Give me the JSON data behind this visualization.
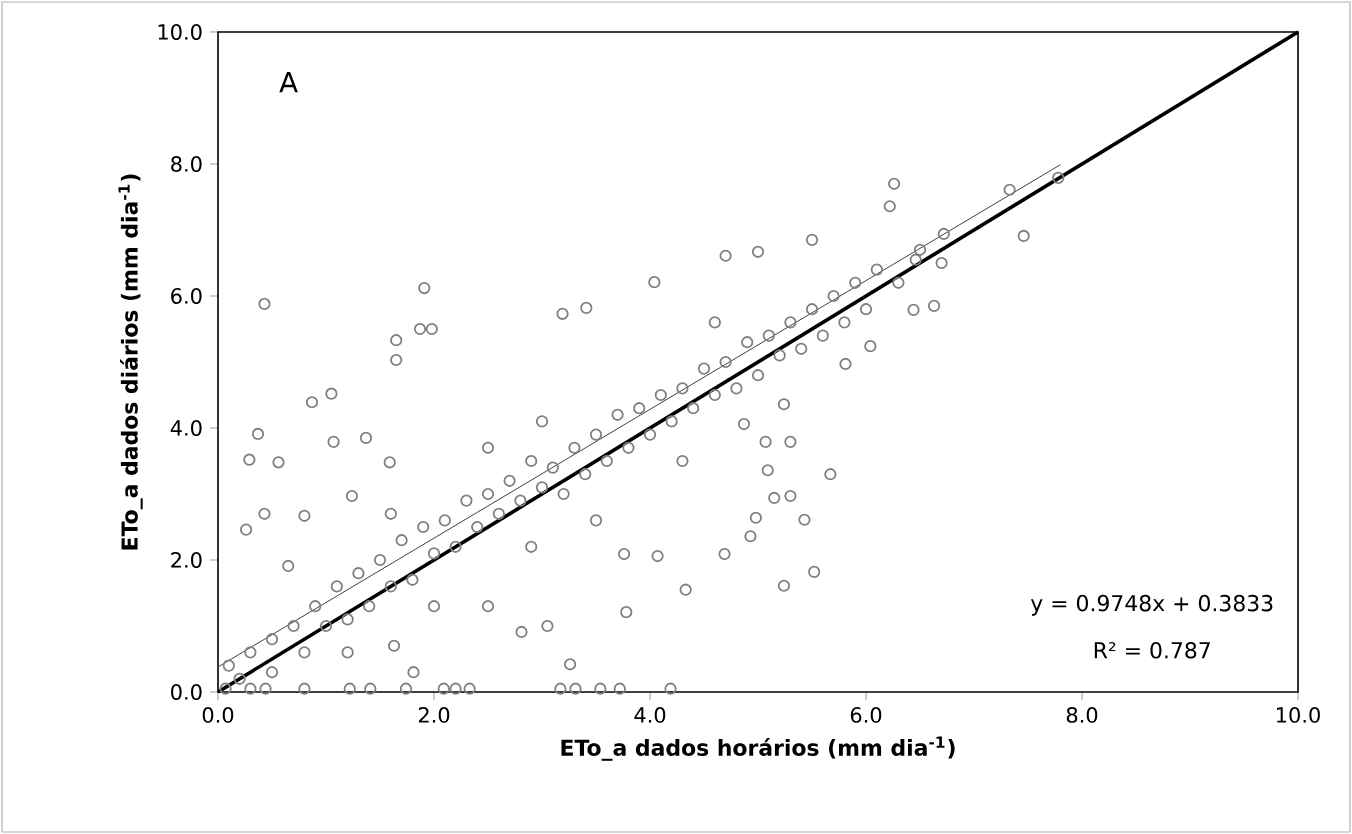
{
  "chart_data": {
    "type": "scatter",
    "xlabel": "ETo_a dados horários (mm dia$^{-1}$)",
    "ylabel": "ETo_a dados diários (mm dia$^{-1}$)",
    "xlim": [
      0,
      10
    ],
    "ylim": [
      0,
      10
    ],
    "xticks": [
      {
        "value": 0,
        "label": "0.0"
      },
      {
        "value": 2,
        "label": "2.0"
      },
      {
        "value": 4,
        "label": "4.0"
      },
      {
        "value": 6,
        "label": "6.0"
      },
      {
        "value": 8,
        "label": "8.0"
      },
      {
        "value": 10,
        "label": "10.0"
      }
    ],
    "yticks": [
      {
        "value": 0,
        "label": "0.0"
      },
      {
        "value": 2,
        "label": "2.0"
      },
      {
        "value": 4,
        "label": "4.0"
      },
      {
        "value": 6,
        "label": "6.0"
      },
      {
        "value": 8,
        "label": "8.0"
      },
      {
        "value": 10,
        "label": "10.0"
      }
    ],
    "grid": false,
    "annotations": [
      "A",
      "y = 0.9748x + 0.3833",
      "R² = 0.787"
    ],
    "series": [
      {
        "marker": "circle",
        "color": "#808080",
        "x": [
          0.43,
          1.91,
          1.65,
          1.65,
          1.87,
          1.98,
          0.87,
          1.05,
          0.37,
          0.29,
          0.56,
          0.43,
          0.26,
          0.8,
          0.65,
          1.07,
          1.37,
          1.59,
          1.24,
          2.5,
          2.81,
          3.05,
          1.63,
          1.81,
          3.26,
          3.78,
          4.33,
          3.76,
          4.07,
          4.69,
          3.19,
          3.41,
          4.04,
          4.7,
          5.0,
          0.07,
          0.3,
          0.44,
          0.8,
          1.22,
          1.41,
          1.74,
          2.09,
          2.2,
          2.33,
          3.17,
          3.31,
          3.54,
          3.72,
          4.19,
          7.78,
          7.33,
          7.46,
          6.26,
          6.22,
          6.72,
          6.63,
          5.5,
          5.81,
          6.04,
          5.07,
          5.3,
          5.09,
          5.67,
          5.15,
          5.3,
          5.43,
          4.98,
          4.93,
          5.24,
          5.52,
          5.24,
          4.87,
          6.46,
          6.44,
          0.1,
          0.2,
          0.3,
          0.5,
          0.5,
          0.7,
          0.8,
          0.9,
          1.0,
          1.1,
          1.2,
          1.3,
          1.4,
          1.5,
          1.6,
          1.7,
          1.8,
          1.9,
          2.0,
          2.1,
          2.2,
          2.3,
          2.4,
          2.5,
          2.6,
          2.7,
          2.8,
          2.9,
          3.0,
          3.1,
          3.2,
          3.3,
          3.4,
          3.5,
          3.6,
          3.7,
          3.8,
          3.9,
          4.0,
          4.1,
          4.2,
          4.3,
          4.4,
          4.5,
          4.6,
          4.7,
          4.8,
          4.9,
          5.0,
          5.1,
          5.2,
          5.3,
          5.4,
          5.5,
          5.6,
          5.7,
          5.8,
          5.9,
          6.0,
          6.1,
          6.3,
          6.5,
          6.7,
          3.5,
          2.9,
          4.3,
          1.2,
          2.0,
          3.0,
          2.5,
          4.6,
          1.6
        ],
        "values": [
          5.88,
          6.12,
          5.33,
          5.03,
          5.5,
          5.5,
          4.39,
          4.52,
          3.91,
          3.52,
          3.48,
          2.7,
          2.46,
          2.67,
          1.91,
          3.79,
          3.85,
          3.48,
          2.97,
          1.3,
          0.91,
          1.0,
          0.7,
          0.3,
          0.42,
          1.21,
          1.55,
          2.09,
          2.06,
          2.09,
          5.73,
          5.82,
          6.21,
          6.61,
          6.67,
          0.05,
          0.05,
          0.05,
          0.05,
          0.05,
          0.05,
          0.05,
          0.05,
          0.05,
          0.05,
          0.05,
          0.05,
          0.05,
          0.05,
          0.05,
          7.79,
          7.61,
          6.91,
          7.7,
          7.36,
          6.94,
          5.85,
          6.85,
          4.97,
          5.24,
          3.79,
          3.79,
          3.36,
          3.3,
          2.94,
          2.97,
          2.61,
          2.64,
          2.36,
          1.61,
          1.82,
          4.36,
          4.06,
          6.55,
          5.79,
          0.4,
          0.2,
          0.6,
          0.8,
          0.3,
          1.0,
          0.6,
          1.3,
          1.0,
          1.6,
          1.1,
          1.8,
          1.3,
          2.0,
          1.6,
          2.3,
          1.7,
          2.5,
          2.1,
          2.6,
          2.2,
          2.9,
          2.5,
          3.0,
          2.7,
          3.2,
          2.9,
          3.5,
          3.1,
          3.4,
          3.0,
          3.7,
          3.3,
          3.9,
          3.5,
          4.2,
          3.7,
          4.3,
          3.9,
          4.5,
          4.1,
          4.6,
          4.3,
          4.9,
          4.5,
          5.0,
          4.6,
          5.3,
          4.8,
          5.4,
          5.1,
          5.6,
          5.2,
          5.8,
          5.4,
          6.0,
          5.6,
          6.2,
          5.8,
          6.4,
          6.2,
          6.7,
          6.5,
          2.6,
          2.2,
          3.5,
          0.6,
          1.3,
          4.1,
          3.7,
          5.6,
          2.7
        ]
      },
      {
        "type": "line",
        "marker": "none",
        "color": "#404040",
        "x": [
          0,
          7.8
        ],
        "values": [
          0.38,
          7.99
        ]
      },
      {
        "type": "line",
        "marker": "none",
        "color": "#000000",
        "x": [
          0,
          10
        ],
        "values": [
          0,
          10
        ]
      }
    ]
  }
}
